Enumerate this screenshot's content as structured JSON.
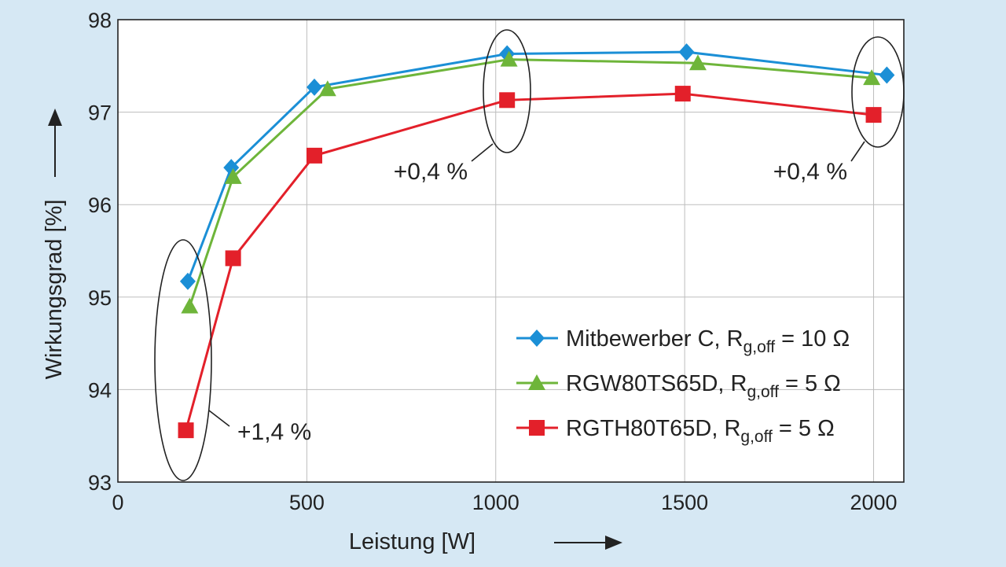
{
  "chart_data": {
    "type": "line",
    "xlabel": "Leistung [W]",
    "ylabel": "Wirkungsgrad [%]",
    "xlim": [
      0,
      2080
    ],
    "ylim": [
      93,
      98
    ],
    "x_ticks": [
      "0",
      "500",
      "1000",
      "1500",
      "2000"
    ],
    "y_ticks": [
      "93",
      "94",
      "95",
      "96",
      "97",
      "98"
    ],
    "grid": true,
    "legend_position": "bottom-right",
    "series": [
      {
        "name_main": "Mitbewerber C, R",
        "name_sub": "g,off",
        "name_tail": " = 10 Ω",
        "marker": "diamond",
        "color": "#1b8fd6",
        "x": [
          185,
          300,
          520,
          1030,
          1505,
          2035
        ],
        "y": [
          95.17,
          96.4,
          97.27,
          97.63,
          97.65,
          97.4
        ]
      },
      {
        "name_main": "RGW80TS65D, R",
        "name_sub": "g,off",
        "name_tail": " = 5 Ω",
        "marker": "triangle",
        "color": "#6eb53a",
        "x": [
          190,
          305,
          555,
          1035,
          1535,
          1995
        ],
        "y": [
          94.9,
          96.3,
          97.25,
          97.57,
          97.53,
          97.37
        ]
      },
      {
        "name_main": "RGTH80T65D, R",
        "name_sub": "g,off",
        "name_tail": " = 5 Ω",
        "marker": "square",
        "color": "#e3202a",
        "x": [
          180,
          305,
          520,
          1030,
          1495,
          2000
        ],
        "y": [
          93.56,
          95.42,
          96.53,
          97.13,
          97.2,
          96.97
        ]
      }
    ],
    "annotations": [
      {
        "text": "+1,4 %",
        "x": 190,
        "y": 94.23
      },
      {
        "text": "+0,4 %",
        "x": 1030,
        "y": 97.35
      },
      {
        "text": "+0,4 %",
        "x": 2025,
        "y": 97.18
      }
    ]
  }
}
